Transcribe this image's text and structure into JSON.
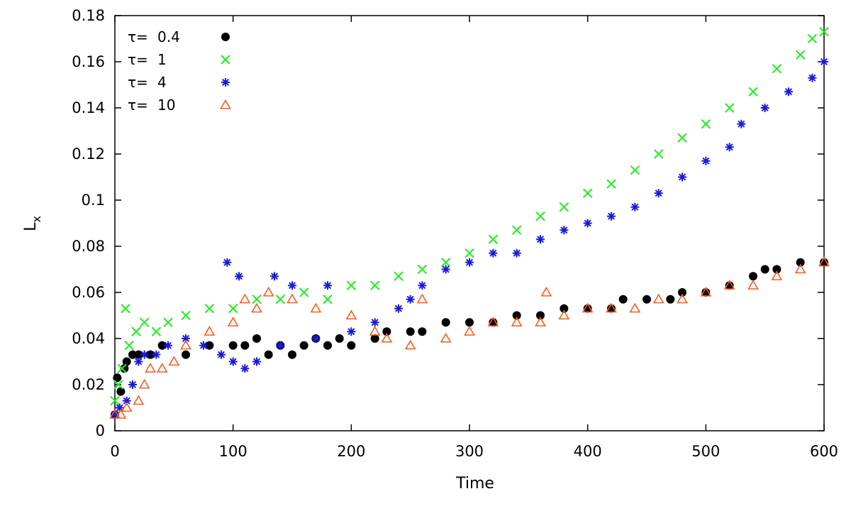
{
  "chart_data": {
    "type": "scatter",
    "xlabel": "Time",
    "ylabel": "L",
    "ylabel_subscript": "x",
    "xlim": [
      0,
      600
    ],
    "ylim": [
      0,
      0.18
    ],
    "xticks": [
      "0",
      "100",
      "200",
      "300",
      "400",
      "500",
      "600"
    ],
    "yticks": [
      "0",
      "0.02",
      "0.04",
      "0.06",
      "0.08",
      "0.1",
      "0.12",
      "0.14",
      "0.16",
      "0.18"
    ],
    "grid": false,
    "legend_position": "top-left",
    "series": [
      {
        "name": "τ= 0.4",
        "legend_label": "τ=",
        "legend_value": "0.4",
        "color": "#000000",
        "marker": "circle",
        "points": [
          [
            0,
            0.007
          ],
          [
            2,
            0.023
          ],
          [
            5,
            0.017
          ],
          [
            8,
            0.027
          ],
          [
            10,
            0.03
          ],
          [
            15,
            0.033
          ],
          [
            20,
            0.033
          ],
          [
            30,
            0.033
          ],
          [
            40,
            0.037
          ],
          [
            60,
            0.033
          ],
          [
            80,
            0.037
          ],
          [
            100,
            0.037
          ],
          [
            110,
            0.037
          ],
          [
            120,
            0.04
          ],
          [
            130,
            0.033
          ],
          [
            140,
            0.037
          ],
          [
            150,
            0.033
          ],
          [
            160,
            0.037
          ],
          [
            170,
            0.04
          ],
          [
            180,
            0.037
          ],
          [
            190,
            0.04
          ],
          [
            200,
            0.037
          ],
          [
            220,
            0.04
          ],
          [
            230,
            0.043
          ],
          [
            250,
            0.043
          ],
          [
            260,
            0.043
          ],
          [
            280,
            0.047
          ],
          [
            300,
            0.047
          ],
          [
            320,
            0.047
          ],
          [
            340,
            0.05
          ],
          [
            360,
            0.05
          ],
          [
            380,
            0.053
          ],
          [
            400,
            0.053
          ],
          [
            420,
            0.053
          ],
          [
            430,
            0.057
          ],
          [
            450,
            0.057
          ],
          [
            470,
            0.057
          ],
          [
            480,
            0.06
          ],
          [
            500,
            0.06
          ],
          [
            520,
            0.063
          ],
          [
            540,
            0.067
          ],
          [
            550,
            0.07
          ],
          [
            560,
            0.07
          ],
          [
            580,
            0.073
          ],
          [
            600,
            0.073
          ]
        ]
      },
      {
        "name": "τ= 1",
        "legend_label": "τ=",
        "legend_value": "1",
        "color": "#22ee22",
        "marker": "x",
        "points": [
          [
            0,
            0.013
          ],
          [
            3,
            0.02
          ],
          [
            6,
            0.027
          ],
          [
            9,
            0.053
          ],
          [
            12,
            0.037
          ],
          [
            18,
            0.043
          ],
          [
            25,
            0.047
          ],
          [
            35,
            0.043
          ],
          [
            45,
            0.047
          ],
          [
            60,
            0.05
          ],
          [
            80,
            0.053
          ],
          [
            100,
            0.053
          ],
          [
            120,
            0.057
          ],
          [
            140,
            0.057
          ],
          [
            160,
            0.06
          ],
          [
            180,
            0.057
          ],
          [
            200,
            0.063
          ],
          [
            220,
            0.063
          ],
          [
            240,
            0.067
          ],
          [
            260,
            0.07
          ],
          [
            280,
            0.073
          ],
          [
            300,
            0.077
          ],
          [
            320,
            0.083
          ],
          [
            340,
            0.087
          ],
          [
            360,
            0.093
          ],
          [
            380,
            0.097
          ],
          [
            400,
            0.103
          ],
          [
            420,
            0.107
          ],
          [
            440,
            0.113
          ],
          [
            460,
            0.12
          ],
          [
            480,
            0.127
          ],
          [
            500,
            0.133
          ],
          [
            520,
            0.14
          ],
          [
            540,
            0.147
          ],
          [
            560,
            0.157
          ],
          [
            580,
            0.163
          ],
          [
            590,
            0.17
          ],
          [
            600,
            0.173
          ]
        ]
      },
      {
        "name": "τ= 4",
        "legend_label": "τ=",
        "legend_value": "4",
        "color": "#1a1adc",
        "marker": "star",
        "points": [
          [
            0,
            0.007
          ],
          [
            4,
            0.01
          ],
          [
            10,
            0.013
          ],
          [
            15,
            0.02
          ],
          [
            20,
            0.03
          ],
          [
            25,
            0.033
          ],
          [
            35,
            0.033
          ],
          [
            45,
            0.037
          ],
          [
            60,
            0.04
          ],
          [
            75,
            0.037
          ],
          [
            90,
            0.033
          ],
          [
            95,
            0.073
          ],
          [
            100,
            0.03
          ],
          [
            105,
            0.067
          ],
          [
            110,
            0.027
          ],
          [
            120,
            0.03
          ],
          [
            135,
            0.067
          ],
          [
            140,
            0.037
          ],
          [
            150,
            0.063
          ],
          [
            170,
            0.04
          ],
          [
            180,
            0.063
          ],
          [
            200,
            0.043
          ],
          [
            220,
            0.047
          ],
          [
            240,
            0.053
          ],
          [
            250,
            0.057
          ],
          [
            260,
            0.063
          ],
          [
            280,
            0.07
          ],
          [
            300,
            0.073
          ],
          [
            320,
            0.077
          ],
          [
            340,
            0.077
          ],
          [
            360,
            0.083
          ],
          [
            380,
            0.087
          ],
          [
            400,
            0.09
          ],
          [
            420,
            0.093
          ],
          [
            440,
            0.097
          ],
          [
            460,
            0.103
          ],
          [
            480,
            0.11
          ],
          [
            500,
            0.117
          ],
          [
            520,
            0.123
          ],
          [
            530,
            0.133
          ],
          [
            550,
            0.14
          ],
          [
            570,
            0.147
          ],
          [
            590,
            0.153
          ],
          [
            600,
            0.16
          ]
        ]
      },
      {
        "name": "τ= 10",
        "legend_label": "τ=",
        "legend_value": "10",
        "color": "#ff5a1a",
        "marker": "triangle",
        "points": [
          [
            0,
            0.007
          ],
          [
            5,
            0.007
          ],
          [
            10,
            0.01
          ],
          [
            20,
            0.013
          ],
          [
            25,
            0.02
          ],
          [
            30,
            0.027
          ],
          [
            40,
            0.027
          ],
          [
            50,
            0.03
          ],
          [
            60,
            0.037
          ],
          [
            80,
            0.043
          ],
          [
            100,
            0.047
          ],
          [
            110,
            0.057
          ],
          [
            120,
            0.053
          ],
          [
            130,
            0.06
          ],
          [
            150,
            0.057
          ],
          [
            170,
            0.053
          ],
          [
            200,
            0.05
          ],
          [
            220,
            0.043
          ],
          [
            230,
            0.04
          ],
          [
            250,
            0.037
          ],
          [
            260,
            0.057
          ],
          [
            280,
            0.04
          ],
          [
            300,
            0.043
          ],
          [
            320,
            0.047
          ],
          [
            340,
            0.047
          ],
          [
            360,
            0.047
          ],
          [
            365,
            0.06
          ],
          [
            380,
            0.05
          ],
          [
            400,
            0.053
          ],
          [
            420,
            0.053
          ],
          [
            440,
            0.053
          ],
          [
            460,
            0.057
          ],
          [
            480,
            0.057
          ],
          [
            500,
            0.06
          ],
          [
            520,
            0.063
          ],
          [
            540,
            0.063
          ],
          [
            560,
            0.067
          ],
          [
            580,
            0.07
          ],
          [
            600,
            0.073
          ]
        ]
      }
    ]
  }
}
